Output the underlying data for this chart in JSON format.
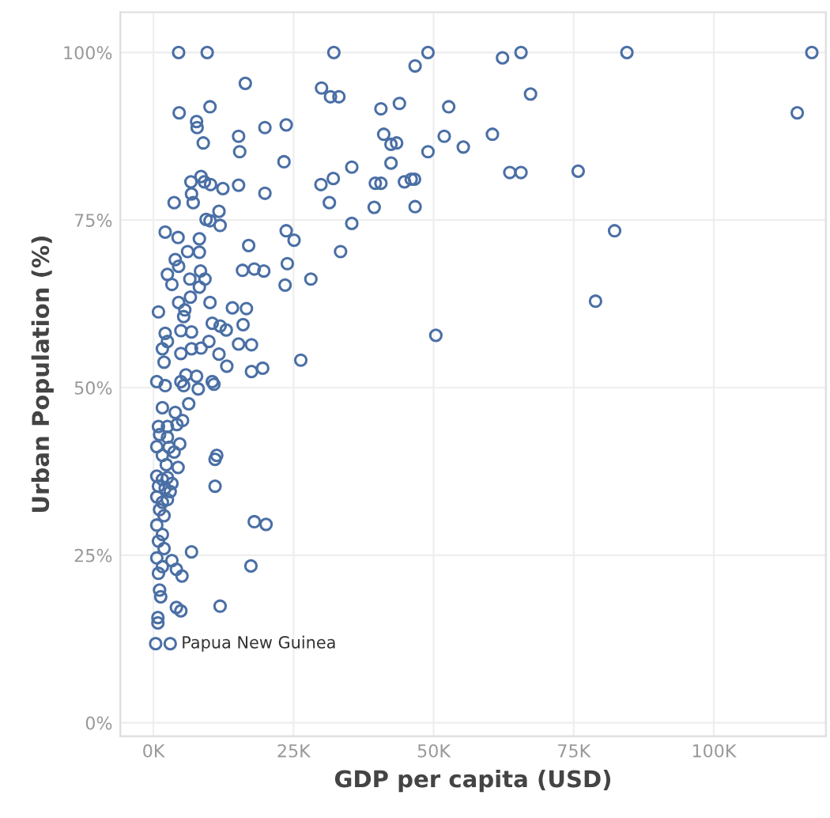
{
  "chart_data": {
    "type": "scatter",
    "xlabel": "GDP per capita (USD)",
    "ylabel": "Urban Population (%)",
    "xlim": [
      -5.9,
      120
    ],
    "ylim": [
      -2,
      106
    ],
    "xticks": [
      {
        "value": 0,
        "label": "0K"
      },
      {
        "value": 25,
        "label": "25K"
      },
      {
        "value": 50,
        "label": "50K"
      },
      {
        "value": 75,
        "label": "75K"
      },
      {
        "value": 100,
        "label": "100K"
      }
    ],
    "yticks": [
      {
        "value": 0,
        "label": "0%"
      },
      {
        "value": 25,
        "label": "25%"
      },
      {
        "value": 50,
        "label": "50%"
      },
      {
        "value": 75,
        "label": "75%"
      },
      {
        "value": 100,
        "label": "100%"
      }
    ],
    "grid": true,
    "marker": "circle",
    "annotations": [
      {
        "text": "Papua New Guinea",
        "x": 3.0,
        "y": 11.8
      }
    ],
    "series": [
      {
        "color": "#4a6fa5",
        "x": [
          49.0,
          46.7,
          62.3,
          65.6,
          84.5,
          117.5,
          114.9,
          67.3,
          40.6,
          43.9,
          52.7,
          41.1,
          42.4,
          43.4,
          51.9,
          60.5,
          55.3,
          49.0,
          42.4,
          35.4,
          39.6,
          40.6,
          44.8,
          46.0,
          46.6,
          63.6,
          65.6,
          75.8,
          39.4,
          46.7,
          35.4,
          82.3,
          78.9,
          50.4,
          4.5,
          9.6,
          32.2,
          16.4,
          30.0,
          31.6,
          33.1,
          4.6,
          10.1,
          7.7,
          7.8,
          19.9,
          23.7,
          15.2,
          8.9,
          15.4,
          23.3,
          6.7,
          8.5,
          9.1,
          10.2,
          12.4,
          15.2,
          6.8,
          7.1,
          3.7,
          19.9,
          29.9,
          32.1,
          31.4,
          33.4,
          11.7,
          9.4,
          10.1,
          11.9,
          2.1,
          4.4,
          8.2,
          23.7,
          25.1,
          17.0,
          6.1,
          8.2,
          3.9,
          4.5,
          23.9,
          15.9,
          18.0,
          19.7,
          2.5,
          8.4,
          3.3,
          6.5,
          9.2,
          8.2,
          23.5,
          28.1,
          0.9,
          4.5,
          5.6,
          6.6,
          10.1,
          14.1,
          16.6,
          5.4,
          10.5,
          11.9,
          13.0,
          16.0,
          2.1,
          4.9,
          6.8,
          2.5,
          9.9,
          15.2,
          17.5,
          1.6,
          4.9,
          6.8,
          8.5,
          11.7,
          1.9,
          13.1,
          17.5,
          19.5,
          26.3,
          5.8,
          7.7,
          10.5,
          0.6,
          4.9,
          2.1,
          5.4,
          8.0,
          10.8,
          6.3,
          1.6,
          3.9,
          5.2,
          0.9,
          2.5,
          4.2,
          1.1,
          2.5,
          4.7,
          0.6,
          2.8,
          1.6,
          3.7,
          2.3,
          4.4,
          11.3,
          11.0,
          0.6,
          1.6,
          2.5,
          3.3,
          0.9,
          2.1,
          3.0,
          11.0,
          0.6,
          1.6,
          2.5,
          1.1,
          1.9,
          18.0,
          20.1,
          0.6,
          1.6,
          0.9,
          1.9,
          6.8,
          0.6,
          3.3,
          17.4,
          1.6,
          4.1,
          0.9,
          5.1,
          1.1,
          1.3,
          4.1,
          4.9,
          11.9,
          0.8,
          0.8,
          0.4,
          3.0
        ],
        "values": [
          100,
          98.0,
          99.2,
          100,
          100,
          100,
          91.0,
          93.8,
          91.6,
          92.4,
          91.9,
          87.8,
          86.3,
          86.5,
          87.5,
          87.8,
          85.9,
          85.2,
          83.5,
          82.9,
          80.5,
          80.5,
          80.7,
          81.1,
          81.1,
          82.1,
          82.1,
          82.3,
          76.9,
          77.0,
          74.5,
          73.4,
          62.9,
          57.8,
          100,
          100,
          100,
          95.4,
          94.7,
          93.4,
          93.4,
          91.0,
          91.9,
          89.7,
          88.8,
          88.8,
          89.2,
          87.5,
          86.5,
          85.2,
          83.7,
          80.7,
          81.5,
          80.7,
          80.3,
          79.7,
          80.2,
          78.9,
          77.6,
          77.6,
          79.0,
          80.3,
          81.2,
          77.6,
          70.3,
          76.3,
          75.1,
          74.9,
          74.2,
          73.2,
          72.4,
          72.2,
          73.4,
          72.0,
          71.2,
          70.3,
          70.2,
          69.1,
          68.1,
          68.5,
          67.5,
          67.7,
          67.4,
          66.9,
          67.4,
          65.4,
          66.2,
          66.2,
          65.0,
          65.3,
          66.2,
          61.3,
          62.7,
          61.6,
          63.5,
          62.7,
          61.9,
          61.8,
          60.6,
          59.6,
          59.2,
          58.6,
          59.4,
          58.1,
          58.5,
          58.3,
          56.9,
          56.9,
          56.5,
          56.4,
          55.8,
          55.1,
          55.8,
          55.9,
          55.0,
          53.8,
          53.2,
          52.4,
          52.9,
          54.1,
          51.9,
          51.7,
          50.9,
          50.9,
          50.9,
          50.3,
          50.3,
          49.8,
          50.5,
          47.6,
          47.0,
          46.3,
          45.1,
          44.2,
          44.2,
          44.5,
          43.0,
          42.6,
          41.6,
          41.2,
          41.1,
          39.9,
          40.4,
          38.5,
          38.1,
          39.9,
          39.3,
          36.8,
          36.3,
          36.6,
          35.7,
          35.3,
          35.0,
          34.5,
          35.3,
          33.7,
          32.9,
          33.3,
          31.8,
          30.9,
          30.0,
          29.6,
          29.5,
          28.1,
          27.1,
          26.0,
          25.5,
          24.6,
          24.2,
          23.4,
          23.3,
          22.9,
          22.3,
          21.9,
          19.8,
          18.8,
          17.2,
          16.7,
          17.4,
          15.7,
          14.9,
          11.8,
          11.8
        ]
      }
    ]
  }
}
